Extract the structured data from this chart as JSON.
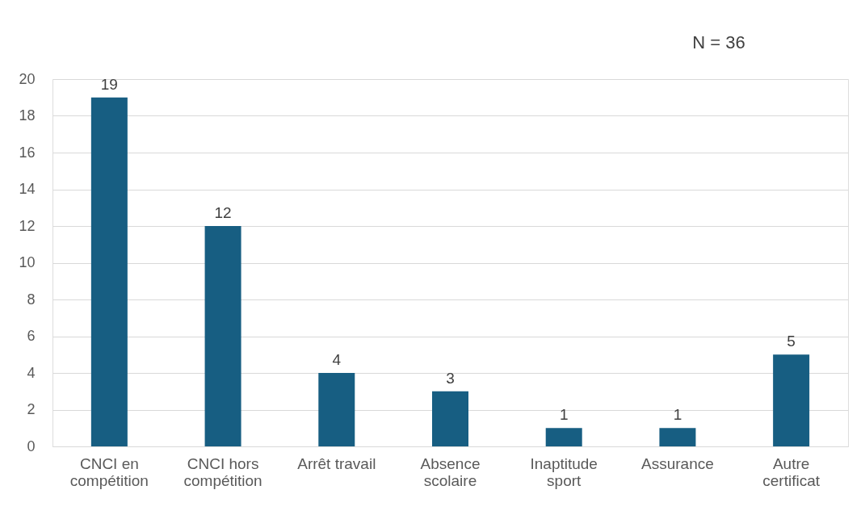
{
  "chart_data": {
    "type": "bar",
    "categories": [
      "CNCI en\ncompétition",
      "CNCI hors\ncompétition",
      "Arrêt travail",
      "Absence\nscolaire",
      "Inaptitude\nsport",
      "Assurance",
      "Autre\ncertificat"
    ],
    "values": [
      19,
      12,
      4,
      3,
      1,
      1,
      5
    ],
    "color": "#175e82",
    "ylim": [
      0,
      20
    ],
    "yticks": [
      0,
      2,
      4,
      6,
      8,
      10,
      12,
      14,
      16,
      18,
      20
    ],
    "grid": "y",
    "data_labels": true,
    "annotations": [
      "N = 36"
    ]
  }
}
